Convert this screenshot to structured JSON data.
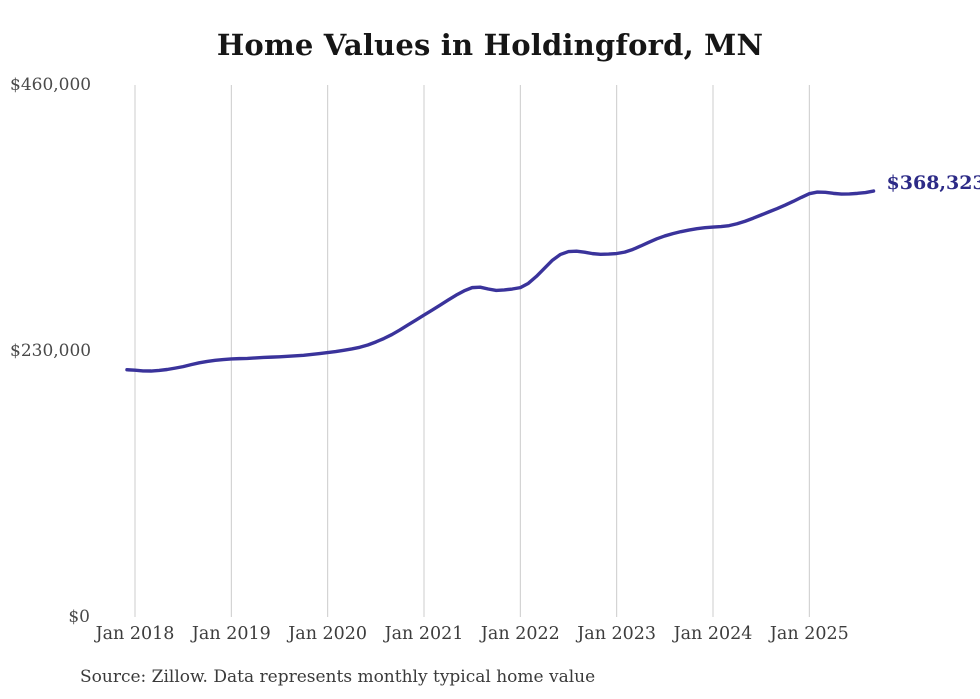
{
  "page": {
    "background": "#ffffff"
  },
  "chart_data": {
    "type": "line",
    "title": "Home Values in Holdingford, MN",
    "subtitle": "",
    "xlabel": "",
    "ylabel": "",
    "ylim": [
      0,
      460000
    ],
    "grid": "vertical-year-gridlines-only",
    "legend": "none",
    "end_label": "$368,323",
    "end_value": 368323,
    "source": "Source: Zillow. Data represents monthly typical home value",
    "x_start_month": "2017-12",
    "x_tick_labels": [
      "Jan 2018",
      "Jan 2019",
      "Jan 2020",
      "Jan 2021",
      "Jan 2022",
      "Jan 2023",
      "Jan 2024",
      "Jan 2025"
    ],
    "y_ticks": [
      {
        "label": "$460,000",
        "value": 460000
      },
      {
        "label": "$230,000",
        "value": 230000
      },
      {
        "label": "$0",
        "value": 0
      }
    ],
    "series": [
      {
        "name": "Monthly typical home value (USD)",
        "values": [
          213800,
          213400,
          212800,
          212700,
          213200,
          214000,
          215200,
          216500,
          218200,
          219800,
          221000,
          221900,
          222600,
          223100,
          223400,
          223600,
          224000,
          224400,
          224700,
          225000,
          225400,
          225800,
          226300,
          227000,
          227800,
          228600,
          229500,
          230600,
          231800,
          233200,
          235200,
          237800,
          240800,
          244200,
          248200,
          252500,
          256800,
          261100,
          265300,
          269600,
          274000,
          278300,
          282000,
          284800,
          285200,
          283600,
          282400,
          282800,
          283600,
          284800,
          288500,
          294500,
          301500,
          308500,
          313500,
          316000,
          316300,
          315400,
          314200,
          313600,
          313800,
          314300,
          315500,
          317800,
          320800,
          324000,
          327000,
          329500,
          331500,
          333200,
          334600,
          335800,
          336600,
          337200,
          337600,
          338400,
          340000,
          342200,
          344800,
          347600,
          350400,
          353200,
          356200,
          359400,
          362800,
          366000,
          367400,
          367200,
          366300,
          365700,
          365800,
          366300,
          367000,
          368323
        ]
      }
    ],
    "colors": {
      "line": "#3a339b",
      "end_label_text": "#2d2b87",
      "gridline": "#cccccc",
      "title_text": "#161616",
      "tick_text": "#3d3d3d",
      "source_text": "#3a3a3a"
    }
  }
}
